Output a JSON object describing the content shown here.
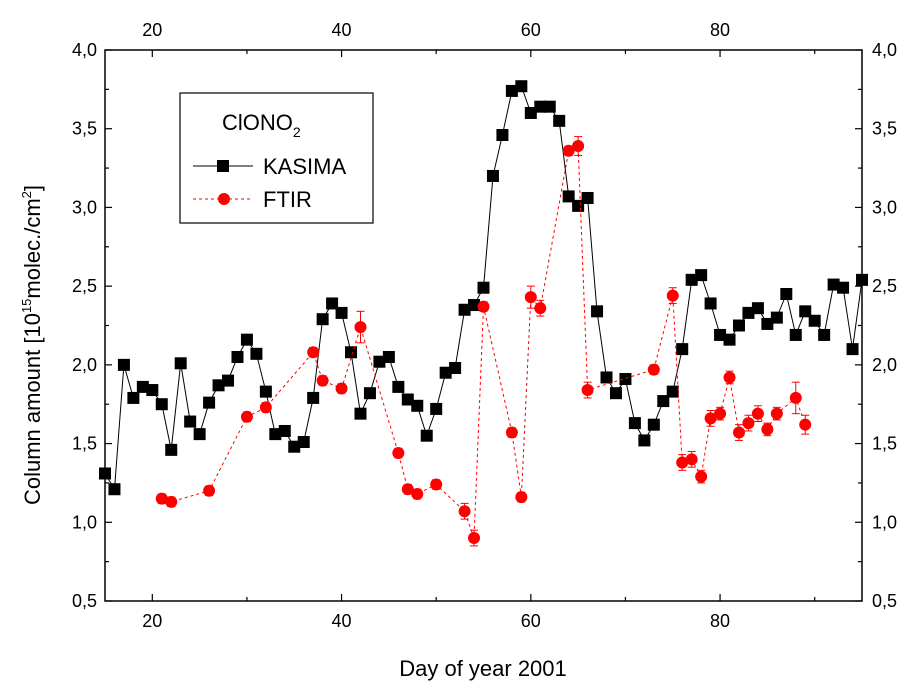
{
  "chart_data": {
    "type": "line",
    "xlabel": "Day of year 2001",
    "ylabel_prefix": "Column amount [10",
    "ylabel_exp": "15",
    "ylabel_mid": "molec./cm",
    "ylabel_exp2": "2",
    "ylabel_suffix": "]",
    "xlim": [
      15,
      95
    ],
    "ylim": [
      0.5,
      4.0
    ],
    "x_ticks": [
      "20",
      "40",
      "60",
      "80"
    ],
    "y_ticks": [
      "0,5",
      "1,0",
      "1,5",
      "2,0",
      "2,5",
      "3,0",
      "3,5",
      "4,0"
    ],
    "legend": {
      "title_main": "ClONO",
      "title_sub": "2",
      "placement": "top-left"
    },
    "series": [
      {
        "name": "KASIMA",
        "color": "#000000",
        "marker": "square",
        "line": "solid",
        "x": [
          15,
          16,
          17,
          18,
          19,
          20,
          21,
          22,
          23,
          24,
          25,
          26,
          27,
          28,
          29,
          30,
          31,
          32,
          33,
          34,
          35,
          36,
          37,
          38,
          39,
          40,
          41,
          42,
          43,
          44,
          45,
          46,
          47,
          48,
          49,
          50,
          51,
          52,
          53,
          54,
          55,
          56,
          57,
          58,
          59,
          60,
          61,
          62,
          63,
          64,
          65,
          66,
          67,
          68,
          69,
          70,
          71,
          72,
          73,
          74,
          75,
          76,
          77,
          78,
          79,
          80,
          81,
          82,
          83,
          84,
          85,
          86,
          87,
          88,
          89,
          90,
          91,
          92,
          93,
          94,
          95
        ],
        "y": [
          1.31,
          1.21,
          2.0,
          1.79,
          1.86,
          1.84,
          1.75,
          1.46,
          2.01,
          1.64,
          1.56,
          1.76,
          1.87,
          1.9,
          2.05,
          2.16,
          2.07,
          1.83,
          1.56,
          1.58,
          1.48,
          1.51,
          1.79,
          2.29,
          2.39,
          2.33,
          2.08,
          1.69,
          1.82,
          2.02,
          2.05,
          1.86,
          1.78,
          1.74,
          1.55,
          1.72,
          1.95,
          1.98,
          2.35,
          2.38,
          2.49,
          3.2,
          3.46,
          3.74,
          3.77,
          3.6,
          3.64,
          3.64,
          3.55,
          3.07,
          3.01,
          3.06,
          2.34,
          1.92,
          1.82,
          1.91,
          1.63,
          1.52,
          1.62,
          1.77,
          1.83,
          2.1,
          2.54,
          2.57,
          2.39,
          2.19,
          2.16,
          2.25,
          2.33,
          2.36,
          2.26,
          2.3,
          2.45,
          2.19,
          2.34,
          2.28,
          2.19,
          2.51,
          2.49,
          2.1,
          2.54
        ]
      },
      {
        "name": "FTIR",
        "color": "#ff0000",
        "marker": "circle",
        "line": "dashed",
        "x": [
          21,
          22,
          26,
          30,
          32,
          37,
          38,
          40,
          42,
          46,
          47,
          48,
          50,
          53,
          54,
          55,
          58,
          59,
          60,
          61,
          64,
          65,
          66,
          73,
          75,
          76,
          77,
          78,
          79,
          80,
          81,
          82,
          83,
          84,
          85,
          86,
          88,
          89
        ],
        "y": [
          1.15,
          1.13,
          1.2,
          1.67,
          1.73,
          2.08,
          1.9,
          1.85,
          2.24,
          1.44,
          1.21,
          1.18,
          1.24,
          1.07,
          0.9,
          2.37,
          1.57,
          1.16,
          2.43,
          2.36,
          3.36,
          3.39,
          1.84,
          1.97,
          2.44,
          1.38,
          1.4,
          1.29,
          1.66,
          1.69,
          1.92,
          1.57,
          1.63,
          1.69,
          1.59,
          1.69,
          1.79,
          1.62
        ],
        "err": [
          0.03,
          0.03,
          0.03,
          0.03,
          0.03,
          0.03,
          0.03,
          0.03,
          0.1,
          0.03,
          0.03,
          0.03,
          0.03,
          0.05,
          0.05,
          0.03,
          0.03,
          0.03,
          0.07,
          0.05,
          0.03,
          0.06,
          0.05,
          0.03,
          0.05,
          0.05,
          0.05,
          0.04,
          0.05,
          0.04,
          0.04,
          0.05,
          0.05,
          0.05,
          0.04,
          0.04,
          0.1,
          0.06
        ]
      }
    ]
  }
}
